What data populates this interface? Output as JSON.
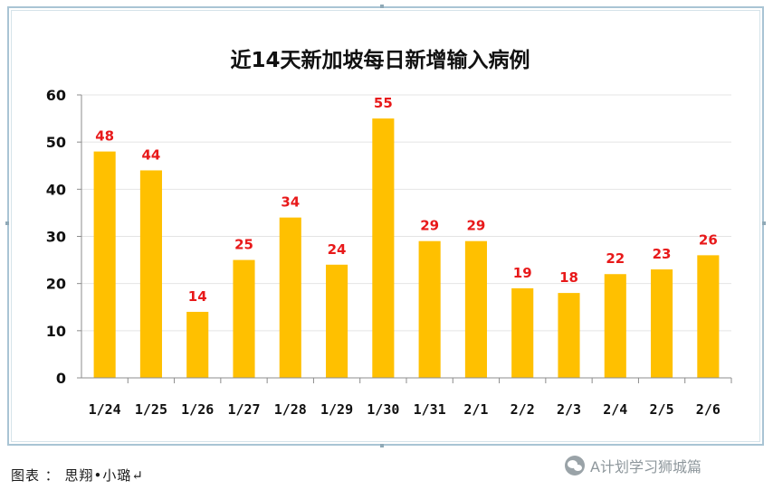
{
  "chart_data": {
    "type": "bar",
    "title": "近14天新加坡每日新增输入病例",
    "categories": [
      "1/24",
      "1/25",
      "1/26",
      "1/27",
      "1/28",
      "1/29",
      "1/30",
      "1/31",
      "2/1",
      "2/2",
      "2/3",
      "2/4",
      "2/5",
      "2/6"
    ],
    "values": [
      48,
      44,
      14,
      25,
      34,
      24,
      55,
      29,
      29,
      19,
      18,
      22,
      23,
      26
    ],
    "ylim": [
      0,
      60
    ],
    "yticks": [
      0,
      10,
      20,
      30,
      40,
      50,
      60
    ],
    "xlabel": "",
    "ylabel": "",
    "grid": true,
    "legend": "none",
    "data_labels": true,
    "colors": {
      "bar": "#FFC000",
      "label": "#E8191A",
      "grid": "#E4E4E4",
      "axis": "#8C8C8C"
    }
  },
  "footer": {
    "caption": "图表 ： 思翔•小璐↵",
    "watermark": "A计划学习狮城篇"
  }
}
